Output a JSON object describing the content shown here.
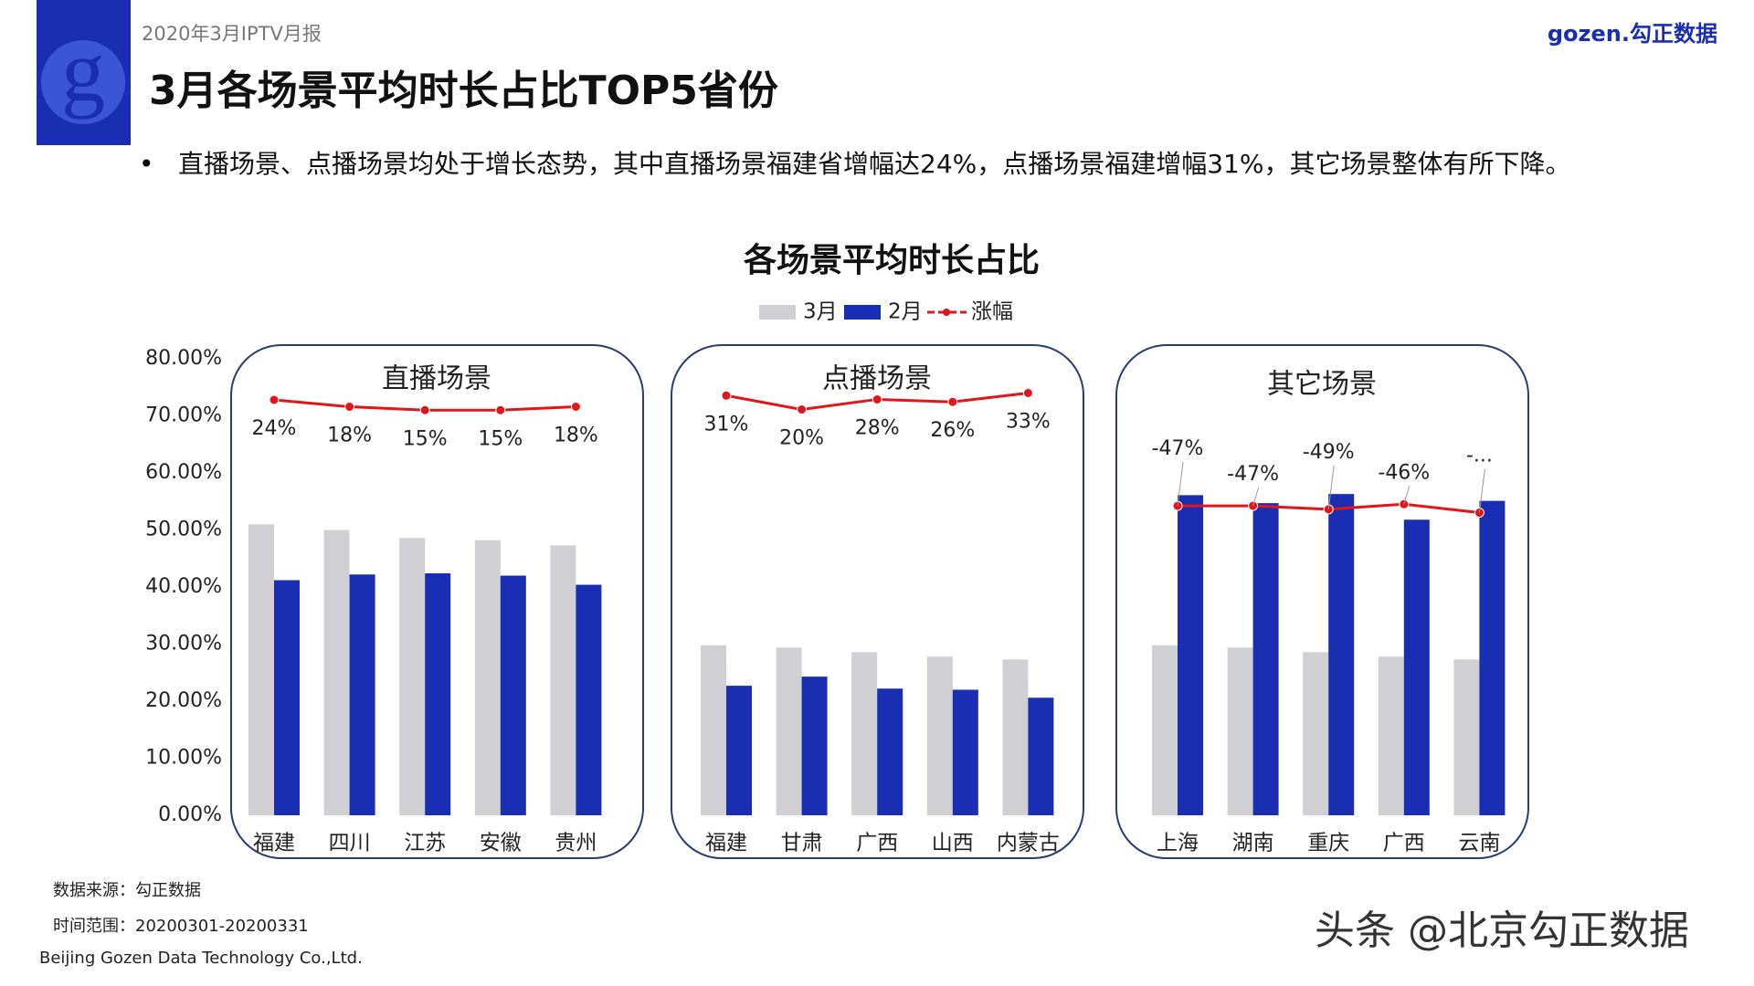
{
  "header": {
    "report": "2020年3月IPTV月报",
    "title": "3月各场景平均时长占比TOP5省份",
    "logo": "gozen.勾正数据"
  },
  "bullet": "直播场景、点播场景均处于增长态势，其中直播场景福建省增幅达24%，点播场景福建增幅31%，其它场景整体有所下降。",
  "chart_data": {
    "type": "bar-line",
    "title": "各场景平均时长占比",
    "ylim": [
      0,
      80
    ],
    "yticks": [
      {
        "value": 0,
        "label": "0.00%"
      },
      {
        "value": 10,
        "label": "10.00%"
      },
      {
        "value": 20,
        "label": "20.00%"
      },
      {
        "value": 30,
        "label": "30.00%"
      },
      {
        "value": 40,
        "label": "40.00%"
      },
      {
        "value": 50,
        "label": "50.00%"
      },
      {
        "value": 60,
        "label": "60.00%"
      },
      {
        "value": 70,
        "label": "70.00%"
      },
      {
        "value": 80,
        "label": "80.00%"
      }
    ],
    "panels": [
      {
        "title": "直播场景",
        "categories": [
          "福建",
          "四川",
          "江苏",
          "安徽",
          "贵州"
        ],
        "y2lim": [
          -340,
          60
        ],
        "series": [
          {
            "name": "3月",
            "color": "#d0cfd4",
            "values": [
              51.0,
              50.0,
              48.6,
              48.2,
              47.3
            ]
          },
          {
            "name": "2月",
            "color": "#1a2eb4",
            "values": [
              41.2,
              42.2,
              42.4,
              42.0,
              40.4
            ]
          },
          {
            "name": "涨幅",
            "color": "#e0161c",
            "axis": "y2",
            "values": [
              24,
              18,
              15,
              15,
              18
            ],
            "value_labels": [
              "24%",
              "18%",
              "15%",
              "15%",
              "18%"
            ]
          }
        ]
      },
      {
        "title": "点播场景",
        "categories": [
          "福建",
          "甘肃",
          "广西",
          "山西",
          "内蒙古"
        ],
        "y2lim": [
          -300,
          60
        ],
        "series": [
          {
            "name": "3月",
            "color": "#d0cfd4",
            "values": [
              29.8,
              29.4,
              28.6,
              27.8,
              27.3
            ]
          },
          {
            "name": "2月",
            "color": "#1a2eb4",
            "values": [
              22.7,
              24.3,
              22.2,
              22.0,
              20.6
            ]
          },
          {
            "name": "涨幅",
            "color": "#e0161c",
            "axis": "y2",
            "values": [
              31,
              20,
              28,
              26,
              33
            ],
            "value_labels": [
              "31%",
              "20%",
              "28%",
              "26%",
              "33%"
            ]
          }
        ]
      },
      {
        "title": "其它场景",
        "categories": [
          "上海",
          "湖南",
          "重庆",
          "广西",
          "云南"
        ],
        "y2lim": [
          -230,
          40
        ],
        "series": [
          {
            "name": "3月",
            "color": "#d0cfd4",
            "values": [
              29.8,
              29.4,
              28.6,
              27.8,
              27.3
            ]
          },
          {
            "name": "2月",
            "color": "#1a2eb4",
            "values": [
              56.1,
              54.7,
              56.3,
              51.8,
              55.1
            ]
          },
          {
            "name": "涨幅",
            "color": "#e0161c",
            "axis": "y2",
            "values": [
              -47,
              -47,
              -49,
              -46,
              -51
            ],
            "value_labels": [
              "-47%",
              "-47%",
              "-49%",
              "-46%",
              "-..."
            ]
          }
        ]
      }
    ]
  },
  "footer": {
    "source": "数据来源：勾正数据",
    "period": "时间范围：20200301-20200331",
    "company": "Beijing Gozen Data Technology Co.,Ltd.",
    "watermark": "头条 @北京勾正数据"
  }
}
